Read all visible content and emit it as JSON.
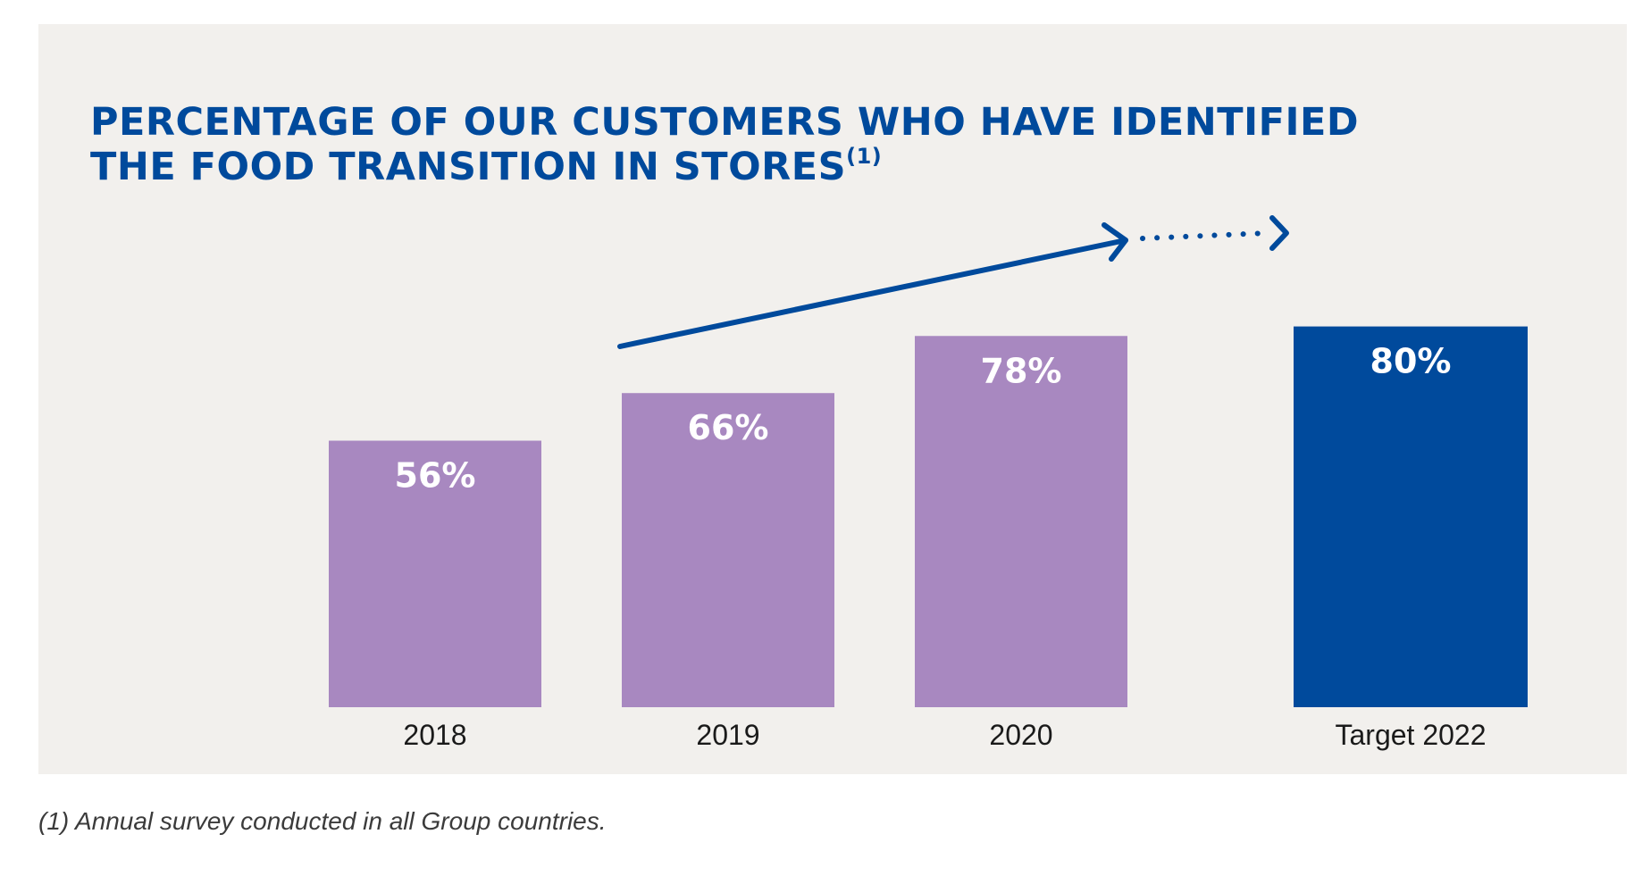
{
  "title_line1": "PERCENTAGE OF OUR CUSTOMERS WHO HAVE IDENTIFIED",
  "title_line2": "THE FOOD TRANSITION IN STORES",
  "title_note_marker": "(1)",
  "footnote": "(1) Annual survey conducted in all Group countries.",
  "colors": {
    "panel_background": "#f2f0ed",
    "title": "#004a9c",
    "actual_bar": "#a888c0",
    "target_bar": "#004a9c",
    "arrow": "#004a9c",
    "bar_label": "#ffffff",
    "category_label": "#1a1a1a"
  },
  "chart_data": {
    "type": "bar",
    "title": "PERCENTAGE OF OUR CUSTOMERS WHO HAVE IDENTIFIED THE FOOD TRANSITION IN STORES",
    "categories": [
      "2018",
      "2019",
      "2020",
      "Target 2022"
    ],
    "values": [
      56,
      66,
      78,
      80
    ],
    "data_labels": [
      "56%",
      "66%",
      "78%",
      "80%"
    ],
    "kinds": [
      "actual",
      "actual",
      "actual",
      "target"
    ],
    "unit": "%",
    "xlabel": "",
    "ylabel": "",
    "grid": false,
    "legend": "none",
    "trend_arrow": {
      "from": "2019",
      "to": "Target 2022",
      "dashed_to_target": true
    }
  }
}
